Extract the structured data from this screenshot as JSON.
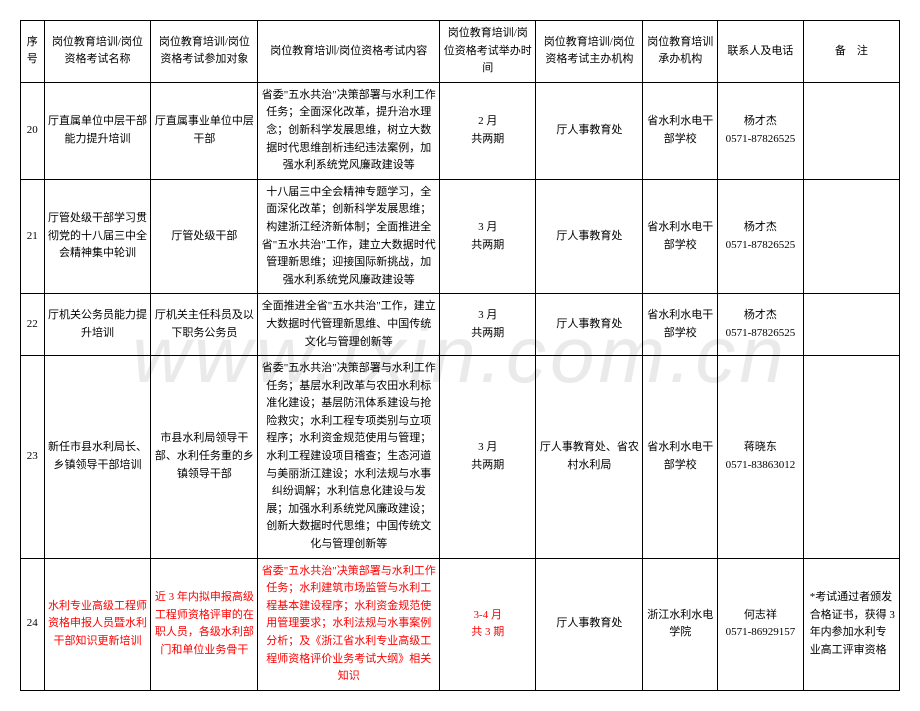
{
  "watermark": "www.fxin.com.cn",
  "headers": {
    "seq": "序号",
    "name": "岗位教育培训/岗位资格考试名称",
    "target": "岗位教育培训/岗位资格考试参加对象",
    "content": "岗位教育培训/岗位资格考试内容",
    "time": "岗位教育培训/岗位资格考试举办时间",
    "host": "岗位教育培训/岗位资格考试主办机构",
    "org": "岗位教育培训承办机构",
    "contact": "联系人及电话",
    "remark": "备　注"
  },
  "rows": [
    {
      "seq": "20",
      "name": "厅直属单位中层干部能力提升培训",
      "target": "厅直属事业单位中层干部",
      "content": "省委\"五水共治\"决策部署与水利工作任务；全面深化改革，提升治水理念；创新科学发展思维，树立大数据时代思维剖析违纪违法案例，加强水利系统党风廉政建设等",
      "time_l1": "2 月",
      "time_l2": "共两期",
      "host": "厅人事教育处",
      "org": "省水利水电干部学校",
      "contact_l1": "杨才杰",
      "contact_l2": "0571-87826525",
      "remark": "",
      "red": false
    },
    {
      "seq": "21",
      "name": "厅管处级干部学习贯彻党的十八届三中全会精神集中轮训",
      "target": "厅管处级干部",
      "content": "十八届三中全会精神专题学习，全面深化改革；创新科学发展思维；构建浙江经济新体制；全面推进全省\"五水共治\"工作，建立大数据时代管理新思维；迎接国际新挑战，加强水利系统党风廉政建设等",
      "time_l1": "3 月",
      "time_l2": "共两期",
      "host": "厅人事教育处",
      "org": "省水利水电干部学校",
      "contact_l1": "杨才杰",
      "contact_l2": "0571-87826525",
      "remark": "",
      "red": false
    },
    {
      "seq": "22",
      "name": "厅机关公务员能力提升培训",
      "target": "厅机关主任科员及以下职务公务员",
      "content": "全面推进全省\"五水共治\"工作，建立大数据时代管理新思维、中国传统文化与管理创新等",
      "time_l1": "3 月",
      "time_l2": "共两期",
      "host": "厅人事教育处",
      "org": "省水利水电干部学校",
      "contact_l1": "杨才杰",
      "contact_l2": "0571-87826525",
      "remark": "",
      "red": false
    },
    {
      "seq": "23",
      "name": "新任市县水利局长、乡镇领导干部培训",
      "target": "市县水利局领导干部、水利任务重的乡镇领导干部",
      "content": "省委\"五水共治\"决策部署与水利工作任务；基层水利改革与农田水利标准化建设；基层防汛体系建设与抢险救灾；水利工程专项类别与立项程序；水利资金规范使用与管理；水利工程建设项目稽查；生态河道与美丽浙江建设；水利法规与水事纠纷调解；水利信息化建设与发展；加强水利系统党风廉政建设；创新大数据时代思维；中国传统文化与管理创新等",
      "time_l1": "3 月",
      "time_l2": "共两期",
      "host": "厅人事教育处、省农村水利局",
      "org": "省水利水电干部学校",
      "contact_l1": "蒋晓东",
      "contact_l2": "0571-83863012",
      "remark": "",
      "red": false
    },
    {
      "seq": "24",
      "name": "水利专业高级工程师资格申报人员暨水利干部知识更新培训",
      "target": "近 3 年内拟申报高级工程师资格评审的在职人员，各级水利部门和单位业务骨干",
      "content": "省委\"五水共治\"决策部署与水利工作任务；水利建筑市场监管与水利工程基本建设程序；水利资金规范使用管理要求；水利法规与水事案例分析；及《浙江省水利专业高级工程师资格评价业务考试大纲》相关知识",
      "time_l1": "3-4 月",
      "time_l2": "共 3 期",
      "host": "厅人事教育处",
      "org": "浙江水利水电学院",
      "contact_l1": "何志祥",
      "contact_l2": "0571-86929157",
      "remark": "*考试通过者颁发合格证书，获得 3 年内参加水利专业高工评审资格",
      "red": true
    }
  ]
}
